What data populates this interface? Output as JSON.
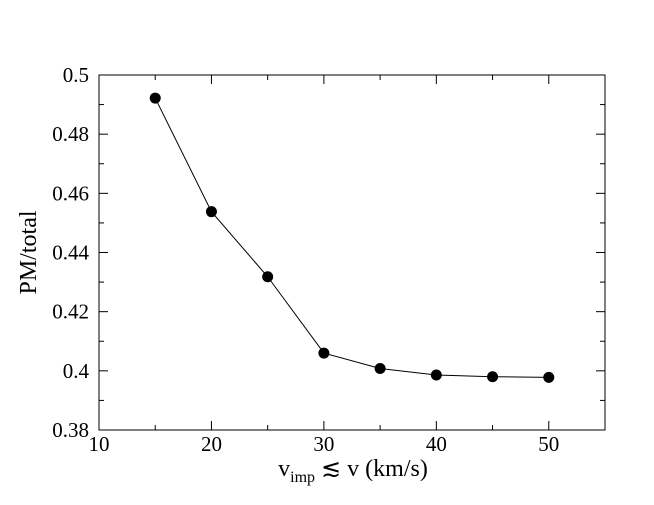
{
  "chart_data": {
    "type": "line",
    "title": "",
    "xlabel": {
      "main": "v",
      "subscript": "imp",
      "rest": " ≲ v (km/s)"
    },
    "ylabel": "PM/total",
    "xlim": [
      10,
      55
    ],
    "ylim": [
      0.38,
      0.5
    ],
    "xticks": [
      10,
      20,
      30,
      40,
      50
    ],
    "xtick_labels": [
      "10",
      "20",
      "30",
      "40",
      "50"
    ],
    "yticks": [
      0.38,
      0.4,
      0.42,
      0.44,
      0.46,
      0.48,
      0.5
    ],
    "ytick_labels": [
      "0.38",
      "0.4",
      "0.42",
      "0.44",
      "0.46",
      "0.48",
      "0.5"
    ],
    "grid": false,
    "legend": "none",
    "series": [
      {
        "marker": "filled-circle",
        "color": "#000000",
        "x": [
          15,
          20,
          25,
          30,
          35,
          40,
          45,
          50
        ],
        "y": [
          0.4922,
          0.4538,
          0.4318,
          0.406,
          0.4008,
          0.3986,
          0.398,
          0.3978
        ]
      }
    ]
  }
}
